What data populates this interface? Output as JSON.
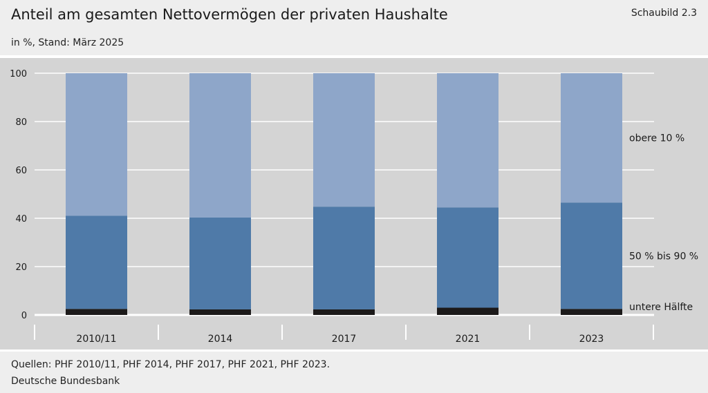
{
  "header": {
    "title": "Anteil am gesamten Nettovermögen der privaten Haushalte",
    "figure_number": "Schaubild 2.3",
    "subtitle": "in %, Stand: März 2025"
  },
  "footer": {
    "source": "Quellen: PHF 2010/11, PHF 2014, PHF 2017, PHF 2021, PHF 2023.",
    "publisher": "Deutsche Bundesbank"
  },
  "colors": {
    "plot_background": "#d4d4d4",
    "gridline": "#ffffff",
    "untere_haelfte": "#1c1a1a",
    "mitte": "#4f7aa8",
    "obere": "#8ea6c9"
  },
  "chart_data": {
    "type": "bar",
    "stacked": true,
    "title": "Anteil am gesamten Nettovermögen der privaten Haushalte",
    "subtitle": "in %, Stand: März 2025",
    "categories": [
      "2010/11",
      "2014",
      "2017",
      "2021",
      "2023"
    ],
    "series": [
      {
        "name": "untere Hälfte",
        "values": [
          2.5,
          2.3,
          2.3,
          3.0,
          2.5
        ],
        "color": "#1c1a1a"
      },
      {
        "name": "50 % bis 90 %",
        "values": [
          38.5,
          38.0,
          42.5,
          41.5,
          44.0
        ],
        "color": "#4f7aa8"
      },
      {
        "name": "obere 10 %",
        "values": [
          59.0,
          59.7,
          55.2,
          55.5,
          53.5
        ],
        "color": "#8ea6c9"
      }
    ],
    "ylim": [
      0,
      100
    ],
    "yticks": [
      0,
      20,
      40,
      60,
      80,
      100
    ],
    "grid": true,
    "legend": "right-of-last-bar"
  }
}
